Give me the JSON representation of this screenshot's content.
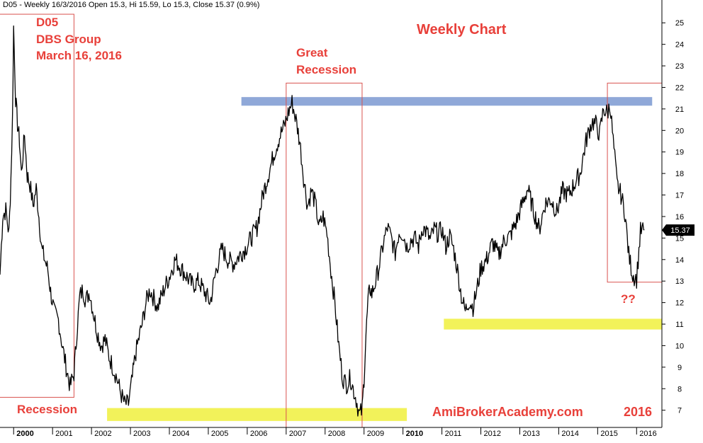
{
  "header": "D05 - Weekly 16/3/2016 Open 15.3, Hi 15.59, Lo 15.3, Close 15.37 (0.9%)",
  "annotations": {
    "ticker": "D05",
    "company": "DBS Group",
    "date": "March 16, 2016",
    "chart_kind": "Weekly Chart",
    "great_recession_1": "Great",
    "great_recession_2": "Recession",
    "recession": "Recession",
    "question": "??",
    "brand": "AmiBrokerAcademy.com",
    "brand_year": "2016"
  },
  "colors": {
    "price_line": "#000000",
    "annotation": "#e8403a",
    "box": "#d9534f",
    "resistance": "#8fa8d8",
    "support": "#f2f25a",
    "badge_bg": "#000000",
    "badge_text": "#ffffff"
  },
  "chart_data": {
    "type": "line",
    "title": "",
    "xlabel": "",
    "ylabel": "",
    "ylim": [
      6.2,
      25.6
    ],
    "xlim": [
      1999.65,
      2016.65
    ],
    "y_ticks": [
      7,
      8,
      9,
      10,
      11,
      12,
      13,
      14,
      15,
      16,
      17,
      18,
      19,
      20,
      21,
      22,
      23,
      24,
      25
    ],
    "x_ticks": [
      {
        "label": "2000",
        "x": 2000.0,
        "bold": true
      },
      {
        "label": "2001",
        "x": 2001.0,
        "bold": false
      },
      {
        "label": "2002",
        "x": 2002.0,
        "bold": false
      },
      {
        "label": "2003",
        "x": 2003.0,
        "bold": false
      },
      {
        "label": "2004",
        "x": 2004.0,
        "bold": false
      },
      {
        "label": "2005",
        "x": 2005.0,
        "bold": false
      },
      {
        "label": "2006",
        "x": 2006.0,
        "bold": false
      },
      {
        "label": "2007",
        "x": 2007.0,
        "bold": false
      },
      {
        "label": "2008",
        "x": 2008.0,
        "bold": false
      },
      {
        "label": "2009",
        "x": 2009.0,
        "bold": false
      },
      {
        "label": "2010",
        "x": 2010.0,
        "bold": true
      },
      {
        "label": "2011",
        "x": 2011.0,
        "bold": false
      },
      {
        "label": "2012",
        "x": 2012.0,
        "bold": false
      },
      {
        "label": "2013",
        "x": 2013.0,
        "bold": false
      },
      {
        "label": "2014",
        "x": 2014.0,
        "bold": false
      },
      {
        "label": "2015",
        "x": 2015.0,
        "bold": false
      },
      {
        "label": "2016",
        "x": 2016.0,
        "bold": false
      }
    ],
    "last_price_label": "15.37",
    "last_price": 15.37,
    "series": [
      {
        "x": [
          1999.65,
          1999.72,
          1999.8,
          1999.88,
          1999.93,
          1999.97,
          2000.0,
          2000.05,
          2000.1,
          2000.15,
          2000.2,
          2000.28,
          2000.35,
          2000.42,
          2000.5,
          2000.58,
          2000.65,
          2000.72,
          2000.8,
          2000.88,
          2000.95,
          2001.05,
          2001.15,
          2001.25,
          2001.35,
          2001.45,
          2001.55,
          2001.62,
          2001.7,
          2001.78,
          2001.85,
          2001.95,
          2002.05,
          2002.15,
          2002.25,
          2002.35,
          2002.45,
          2002.55,
          2002.65,
          2002.75,
          2002.85,
          2002.95,
          2003.05,
          2003.12,
          2003.2,
          2003.3,
          2003.4,
          2003.5,
          2003.6,
          2003.7,
          2003.8,
          2003.9,
          2004.0,
          2004.15,
          2004.3,
          2004.45,
          2004.6,
          2004.75,
          2004.9,
          2005.05,
          2005.2,
          2005.35,
          2005.5,
          2005.65,
          2005.8,
          2005.95,
          2006.1,
          2006.25,
          2006.4,
          2006.55,
          2006.7,
          2006.85,
          2006.95,
          2007.05,
          2007.15,
          2007.25,
          2007.35,
          2007.45,
          2007.55,
          2007.65,
          2007.75,
          2007.85,
          2007.95,
          2008.05,
          2008.15,
          2008.25,
          2008.35,
          2008.45,
          2008.55,
          2008.65,
          2008.72,
          2008.8,
          2008.88,
          2008.95,
          2009.0,
          2009.05,
          2009.1,
          2009.15,
          2009.2,
          2009.3,
          2009.4,
          2009.5,
          2009.6,
          2009.7,
          2009.8,
          2009.9,
          2010.0,
          2010.1,
          2010.2,
          2010.3,
          2010.4,
          2010.5,
          2010.6,
          2010.7,
          2010.8,
          2010.9,
          2011.0,
          2011.1,
          2011.2,
          2011.3,
          2011.4,
          2011.5,
          2011.6,
          2011.7,
          2011.8,
          2011.9,
          2012.0,
          2012.15,
          2012.3,
          2012.45,
          2012.6,
          2012.75,
          2012.9,
          2013.05,
          2013.2,
          2013.35,
          2013.5,
          2013.65,
          2013.8,
          2013.95,
          2014.1,
          2014.25,
          2014.4,
          2014.55,
          2014.7,
          2014.85,
          2014.95,
          2015.05,
          2015.15,
          2015.25,
          2015.32,
          2015.4,
          2015.5,
          2015.6,
          2015.7,
          2015.8,
          2015.9,
          2016.0,
          2016.1,
          2016.2
        ],
        "values": [
          13.3,
          16.0,
          16.3,
          15.2,
          17.8,
          20.5,
          24.8,
          21.5,
          20.3,
          19.5,
          18.0,
          19.8,
          17.9,
          17.5,
          16.5,
          17.3,
          16.0,
          14.5,
          14.0,
          13.5,
          12.5,
          11.5,
          11.2,
          10.0,
          9.0,
          8.1,
          8.7,
          10.5,
          12.3,
          12.6,
          12.1,
          12.5,
          11.5,
          10.6,
          10.0,
          10.3,
          9.5,
          9.0,
          8.5,
          7.8,
          7.3,
          7.3,
          8.5,
          9.5,
          10.2,
          11.0,
          12.0,
          12.6,
          12.2,
          11.8,
          12.3,
          12.8,
          13.2,
          14.0,
          13.6,
          13.2,
          12.8,
          13.0,
          12.5,
          12.0,
          13.5,
          14.5,
          14.0,
          13.8,
          14.2,
          14.5,
          15.0,
          15.5,
          17.0,
          18.0,
          19.0,
          19.8,
          20.2,
          20.8,
          21.3,
          20.5,
          19.5,
          17.8,
          16.5,
          17.2,
          16.6,
          15.5,
          16.0,
          15.2,
          13.5,
          12.0,
          10.0,
          8.5,
          8.2,
          8.5,
          8.0,
          7.5,
          6.8,
          7.0,
          8.5,
          10.5,
          12.0,
          12.7,
          12.4,
          13.0,
          13.8,
          14.8,
          15.5,
          15.0,
          14.3,
          15.3,
          15.2,
          14.6,
          14.9,
          15.0,
          14.6,
          15.5,
          15.3,
          14.9,
          15.4,
          15.2,
          15.4,
          14.6,
          15.1,
          14.5,
          13.5,
          12.3,
          11.6,
          12.1,
          11.8,
          12.6,
          13.6,
          14.0,
          14.8,
          14.2,
          14.9,
          15.1,
          15.7,
          16.5,
          17.3,
          16.3,
          15.4,
          16.6,
          16.8,
          16.2,
          17.2,
          17.0,
          17.5,
          18.0,
          19.5,
          20.4,
          20.3,
          19.8,
          21.0,
          20.8,
          21.2,
          19.5,
          17.5,
          17.0,
          16.2,
          14.2,
          13.3,
          13.1,
          15.3,
          15.37
        ]
      }
    ]
  }
}
